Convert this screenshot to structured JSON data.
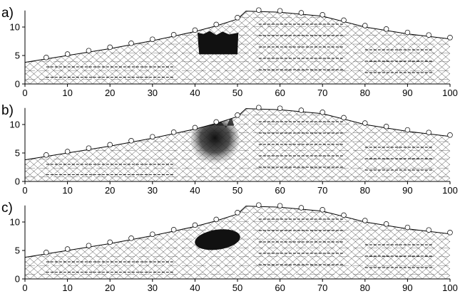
{
  "panels": [
    {
      "label": "a)",
      "anomaly": "sharp-block"
    },
    {
      "label": "b)",
      "anomaly": "diffuse-blob"
    },
    {
      "label": "c)",
      "anomaly": "ellipse"
    }
  ],
  "axes": {
    "x_ticks": [
      "0",
      "10",
      "20",
      "30",
      "40",
      "50",
      "60",
      "70",
      "80",
      "90",
      "100"
    ],
    "y_ticks": [
      "0",
      "5",
      "10"
    ],
    "xlim": [
      0,
      100
    ],
    "ylim": [
      0,
      13
    ]
  },
  "colors": {
    "mesh": "#333333",
    "anomaly": "#111111"
  }
}
